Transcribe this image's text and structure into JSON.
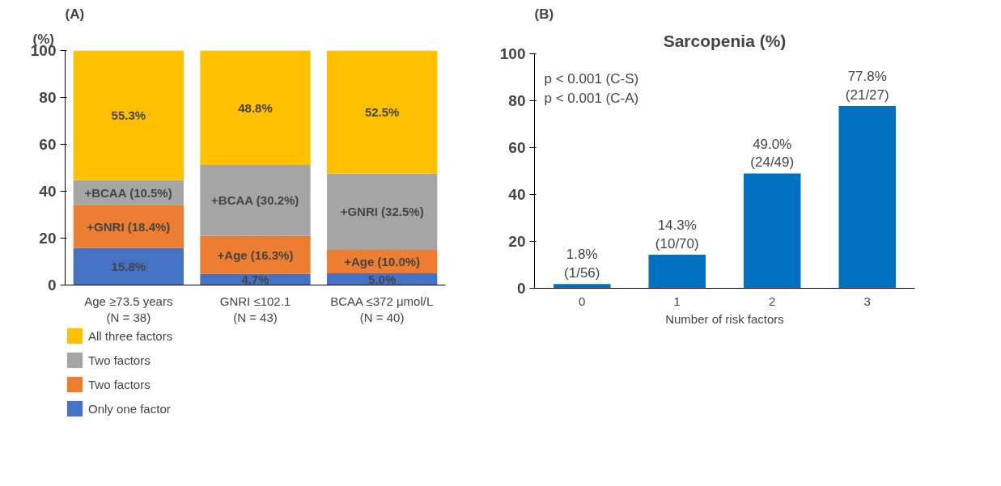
{
  "chart_data": [
    {
      "type": "bar",
      "title": "(A)",
      "ylabel": "(%)",
      "stacked": true,
      "categories": [
        "Age ≥73.5 years\n(N = 38)",
        "GNRI ≤102.1\n(N = 43)",
        "BCAA ≤372 μmol/L\n(N = 40)"
      ],
      "ylim": [
        0,
        100
      ],
      "yticks": [
        0,
        20,
        40,
        60,
        80,
        100
      ],
      "grid": false,
      "legend": "bottom",
      "series": [
        {
          "name": "Only one factor",
          "color": "#4472c4",
          "values": [
            15.8,
            4.7,
            5.0
          ],
          "value_labels": [
            "15.8%",
            "4.7%",
            "5.0%"
          ]
        },
        {
          "name": "Two factors",
          "color": "#ed7d31",
          "values": [
            18.4,
            16.3,
            10.0
          ],
          "value_labels": [
            "+GNRI (18.4%)",
            "+Age (16.3%)",
            "+Age (10.0%)"
          ]
        },
        {
          "name": "Two factors",
          "color": "#a5a5a5",
          "values": [
            10.5,
            30.2,
            32.5
          ],
          "value_labels": [
            "+BCAA (10.5%)",
            "+BCAA (30.2%)",
            "+GNRI (32.5%)"
          ]
        },
        {
          "name": "All three factors",
          "color": "#ffc000",
          "values": [
            55.3,
            48.8,
            52.5
          ],
          "value_labels": [
            "55.3%",
            "48.8%",
            "52.5%"
          ]
        }
      ]
    },
    {
      "type": "bar",
      "title": "(B)",
      "subtitle": "Sarcopenia (%)",
      "xlabel": "Number of risk factors",
      "categories": [
        "0",
        "1",
        "2",
        "3"
      ],
      "ylim": [
        0,
        100
      ],
      "yticks": [
        0,
        20,
        40,
        60,
        80,
        100
      ],
      "grid": false,
      "series": [
        {
          "color": "#0070c0",
          "values": [
            1.8,
            14.3,
            49.0,
            77.8
          ],
          "value_labels": [
            "1.8%\n(1/56)",
            "14.3%\n(10/70)",
            "49.0%\n(24/49)",
            "77.8%\n(21/27)"
          ]
        }
      ],
      "annotations": [
        "p < 0.001 (C-S)",
        "p < 0.001 (C-A)"
      ]
    }
  ]
}
